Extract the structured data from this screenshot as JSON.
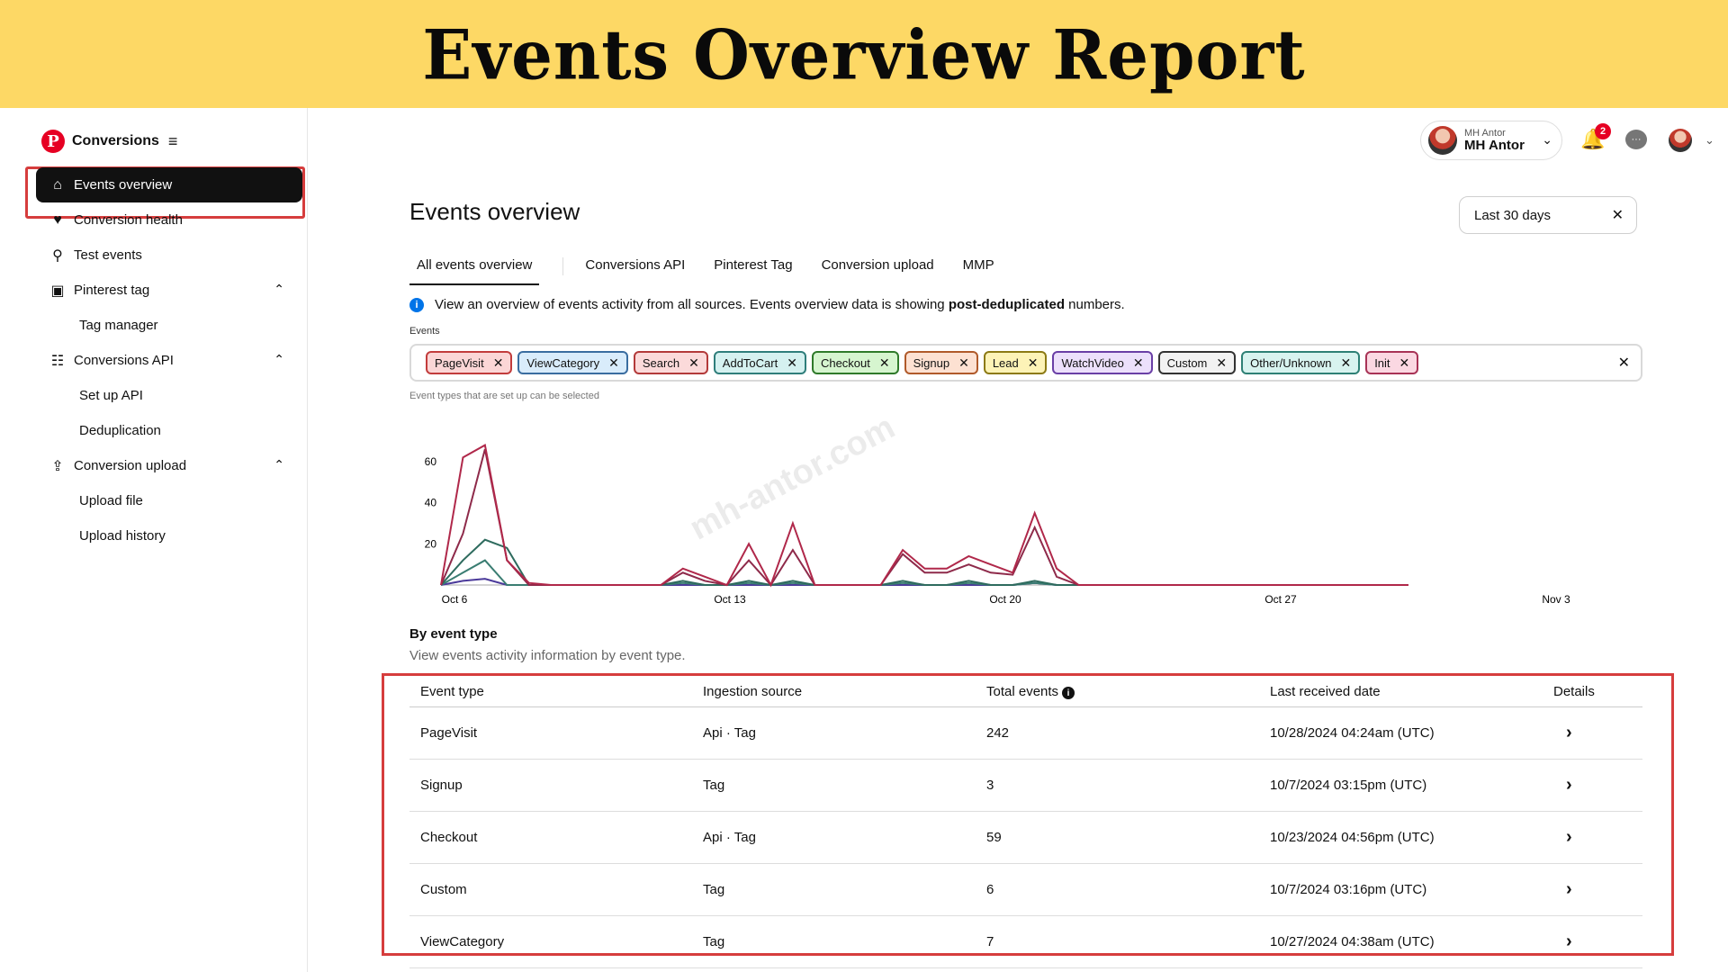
{
  "banner": {
    "title": "Events Overview Report"
  },
  "sidebar": {
    "brand": "Conversions",
    "items": [
      {
        "label": "Events overview",
        "icon": "home-icon",
        "active": true
      },
      {
        "label": "Conversion health",
        "icon": "heart-pulse-icon"
      },
      {
        "label": "Test events",
        "icon": "test-icon"
      },
      {
        "label": "Pinterest tag",
        "icon": "code-tag-icon",
        "expandable": true
      },
      {
        "label": "Tag manager",
        "sub": true
      },
      {
        "label": "Conversions API",
        "icon": "api-icon",
        "expandable": true
      },
      {
        "label": "Set up API",
        "sub": true
      },
      {
        "label": "Deduplication",
        "sub": true
      },
      {
        "label": "Conversion upload",
        "icon": "upload-icon",
        "expandable": true
      },
      {
        "label": "Upload file",
        "sub": true
      },
      {
        "label": "Upload history",
        "sub": true
      }
    ]
  },
  "header": {
    "user_small": "MH Antor",
    "user_big": "MH Antor",
    "notification_count": "2"
  },
  "main": {
    "title": "Events overview",
    "date_range": "Last 30 days",
    "tabs": [
      {
        "label": "All events overview"
      },
      {
        "label": "Conversions API"
      },
      {
        "label": "Pinterest Tag"
      },
      {
        "label": "Conversion upload"
      },
      {
        "label": "MMP"
      }
    ],
    "info_text": "View an overview of events activity from all sources. Events overview data is showing ",
    "info_bold": "post-deduplicated",
    "info_tail": " numbers.",
    "events_label": "Events",
    "events_hint": "Event types that are set up can be selected",
    "chips": [
      {
        "label": "PageVisit",
        "bg": "#fbd6d6",
        "border": "#c23c3c"
      },
      {
        "label": "ViewCategory",
        "bg": "#d9ecfb",
        "border": "#3a6da0"
      },
      {
        "label": "Search",
        "bg": "#fbdada",
        "border": "#b33a3a"
      },
      {
        "label": "AddToCart",
        "bg": "#d5f1f0",
        "border": "#2f7e7b"
      },
      {
        "label": "Checkout",
        "bg": "#d6f5cf",
        "border": "#2f7a2a"
      },
      {
        "label": "Signup",
        "bg": "#fde1d2",
        "border": "#b05a2a"
      },
      {
        "label": "Lead",
        "bg": "#fdf3b7",
        "border": "#8c7a14"
      },
      {
        "label": "WatchVideo",
        "bg": "#ece0fb",
        "border": "#6a3fa6"
      },
      {
        "label": "Custom",
        "bg": "#f2f2f2",
        "border": "#333333"
      },
      {
        "label": "Other/Unknown",
        "bg": "#d8f3ef",
        "border": "#2e8075"
      },
      {
        "label": "Init",
        "bg": "#fbd8e2",
        "border": "#a83356"
      }
    ],
    "watermark": "mh-antor.com",
    "by_event_title": "By event type",
    "by_event_sub": "View events activity information by event type.",
    "table": {
      "headers": [
        "Event type",
        "Ingestion source",
        "Total events",
        "Last received date",
        "Details"
      ],
      "rows": [
        [
          "PageVisit",
          "Api · Tag",
          "242",
          "10/28/2024 04:24am (UTC)"
        ],
        [
          "Signup",
          "Tag",
          "3",
          "10/7/2024 03:15pm (UTC)"
        ],
        [
          "Checkout",
          "Api · Tag",
          "59",
          "10/23/2024 04:56pm (UTC)"
        ],
        [
          "Custom",
          "Tag",
          "6",
          "10/7/2024 03:16pm (UTC)"
        ],
        [
          "ViewCategory",
          "Tag",
          "7",
          "10/27/2024 04:38am (UTC)"
        ]
      ]
    }
  },
  "chart_data": {
    "type": "line",
    "x_ticks": [
      "Oct 6",
      "Oct 13",
      "Oct 20",
      "Oct 27",
      "Nov 3"
    ],
    "y_ticks": [
      20,
      40,
      60
    ],
    "ylim": [
      0,
      70
    ],
    "series": [
      {
        "color": "#b0284a",
        "values": [
          0,
          62,
          68,
          12,
          1,
          0,
          0,
          0,
          0,
          0,
          0,
          8,
          4,
          0,
          20,
          0,
          30,
          0,
          0,
          0,
          0,
          17,
          8,
          8,
          14,
          10,
          6,
          35,
          8,
          0,
          0,
          0,
          0,
          0,
          0,
          0,
          0,
          0,
          0,
          0,
          0,
          0,
          0,
          0,
          0
        ]
      },
      {
        "color": "#8e2a4a",
        "values": [
          0,
          25,
          66,
          12,
          0,
          0,
          0,
          0,
          0,
          0,
          0,
          6,
          2,
          0,
          12,
          0,
          17,
          0,
          0,
          0,
          0,
          15,
          6,
          6,
          10,
          6,
          5,
          28,
          4,
          0,
          0,
          0,
          0,
          0,
          0,
          0,
          0,
          0,
          0,
          0,
          0,
          0,
          0,
          0,
          0
        ]
      },
      {
        "color": "#2e6b5e",
        "values": [
          0,
          12,
          22,
          18,
          0,
          0,
          0,
          0,
          0,
          0,
          0,
          2,
          0,
          0,
          2,
          0,
          2,
          0,
          0,
          0,
          0,
          2,
          0,
          0,
          2,
          0,
          0,
          2,
          0,
          0,
          0,
          0,
          0,
          0,
          0,
          0,
          0,
          0,
          0,
          0,
          0,
          0,
          0,
          0,
          0
        ]
      },
      {
        "color": "#3a7d72",
        "values": [
          0,
          6,
          12,
          0,
          0,
          0,
          0,
          0,
          0,
          0,
          0,
          1,
          0,
          0,
          1,
          0,
          1,
          0,
          0,
          0,
          0,
          1,
          0,
          0,
          1,
          0,
          0,
          1,
          0,
          0,
          0,
          0,
          0,
          0,
          0,
          0,
          0,
          0,
          0,
          0,
          0,
          0,
          0,
          0,
          0
        ]
      },
      {
        "color": "#4b3a9a",
        "values": [
          0,
          2,
          3,
          0,
          0,
          0,
          0,
          0,
          0,
          0,
          0,
          0,
          0,
          0,
          0,
          0,
          0,
          0,
          0,
          0,
          0,
          0,
          0,
          0,
          0,
          0,
          0,
          1,
          0,
          0,
          0,
          0,
          0,
          0,
          0,
          0,
          0,
          0,
          0,
          0,
          0,
          0,
          0,
          0,
          0
        ]
      }
    ]
  }
}
